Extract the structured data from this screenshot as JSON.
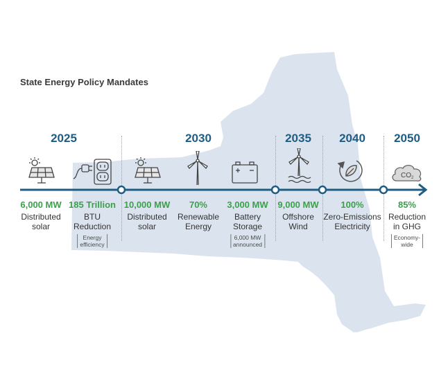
{
  "title": "State Energy Policy Mandates",
  "colors": {
    "accent": "#1f5c84",
    "value": "#3aa14a",
    "map": "#dbe4ee"
  },
  "years": [
    "2025",
    "2030",
    "2035",
    "2040",
    "2050"
  ],
  "items": [
    {
      "value": "6,000 MW",
      "label_lines": [
        "Distributed",
        "solar"
      ],
      "note_lines": [],
      "icon": "solar-panel-icon"
    },
    {
      "value": "185 Trillion",
      "label_lines": [
        "BTU",
        "Reduction"
      ],
      "note_lines": [
        "Energy",
        "efficiency"
      ],
      "icon": "plug-outlet-icon"
    },
    {
      "value": "10,000 MW",
      "label_lines": [
        "Distributed",
        "solar"
      ],
      "note_lines": [],
      "icon": "solar-panel-icon"
    },
    {
      "value": "70%",
      "label_lines": [
        "Renewable",
        "Energy"
      ],
      "note_lines": [],
      "icon": "wind-turbine-icon"
    },
    {
      "value": "3,000 MW",
      "label_lines": [
        "Battery",
        "Storage"
      ],
      "note_lines": [
        "6,000 MW",
        "announced"
      ],
      "icon": "battery-icon"
    },
    {
      "value": "9,000 MW",
      "label_lines": [
        "Offshore",
        "Wind"
      ],
      "note_lines": [],
      "icon": "offshore-wind-icon"
    },
    {
      "value": "100%",
      "label_lines": [
        "Zero-Emissions",
        "Electricity"
      ],
      "note_lines": [],
      "icon": "recycle-leaf-icon"
    },
    {
      "value": "85%",
      "label_lines": [
        "Reduction",
        "in GHG"
      ],
      "note_lines": [
        "Economy-",
        "wide"
      ],
      "icon": "co2-cloud-icon"
    }
  ],
  "co2_text": "CO",
  "co2_sub": "2"
}
